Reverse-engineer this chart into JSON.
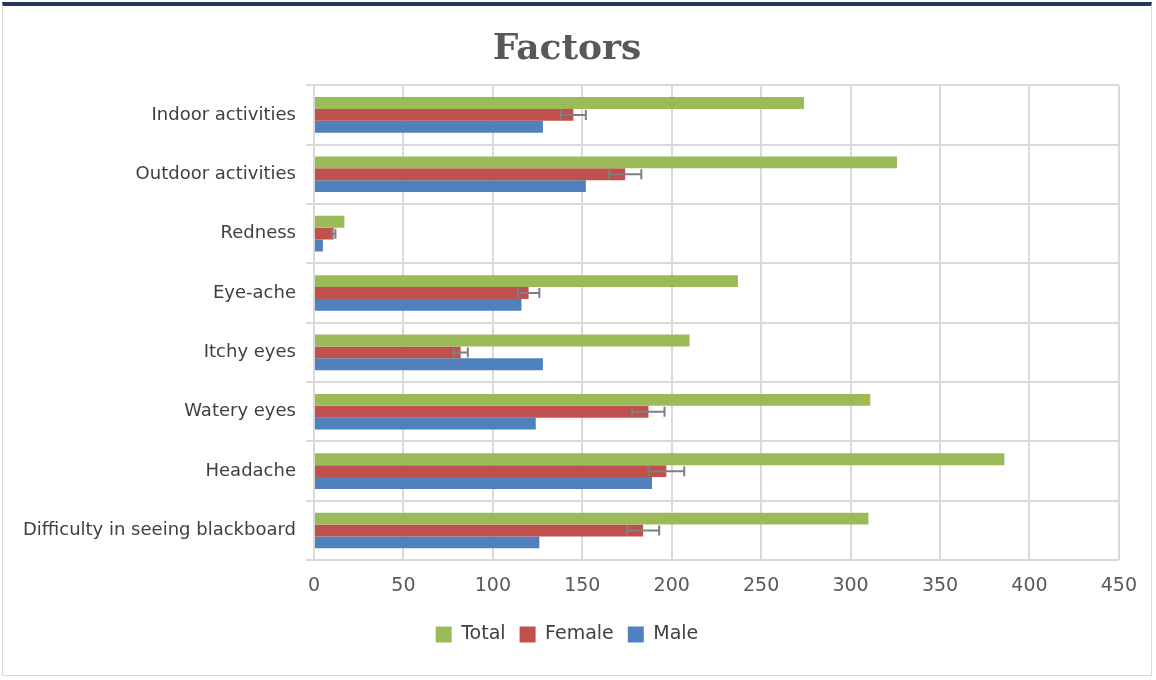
{
  "chart_data": {
    "type": "bar",
    "orientation": "horizontal",
    "title": "Factors",
    "categories": [
      "Indoor activities",
      "Outdoor activities",
      "Redness",
      "Eye-ache",
      "Itchy eyes",
      "Watery eyes",
      "Headache",
      "Difficulty in seeing blackboard"
    ],
    "series": [
      {
        "name": "Total",
        "color": "#9bbb59",
        "values": [
          274,
          326,
          17,
          237,
          210,
          311,
          386,
          310
        ]
      },
      {
        "name": "Female",
        "color": "#c0504d",
        "values": [
          145,
          174,
          11,
          120,
          82,
          187,
          197,
          184
        ],
        "errors": [
          7,
          9,
          1,
          6,
          4,
          9,
          10,
          9
        ]
      },
      {
        "name": "Male",
        "color": "#4f81bd",
        "values": [
          128,
          152,
          5,
          116,
          128,
          124,
          189,
          126
        ]
      }
    ],
    "xlim": [
      0,
      450
    ],
    "xticks": [
      0,
      50,
      100,
      150,
      200,
      250,
      300,
      350,
      400,
      450
    ],
    "grid": true,
    "legend": "bottom"
  }
}
